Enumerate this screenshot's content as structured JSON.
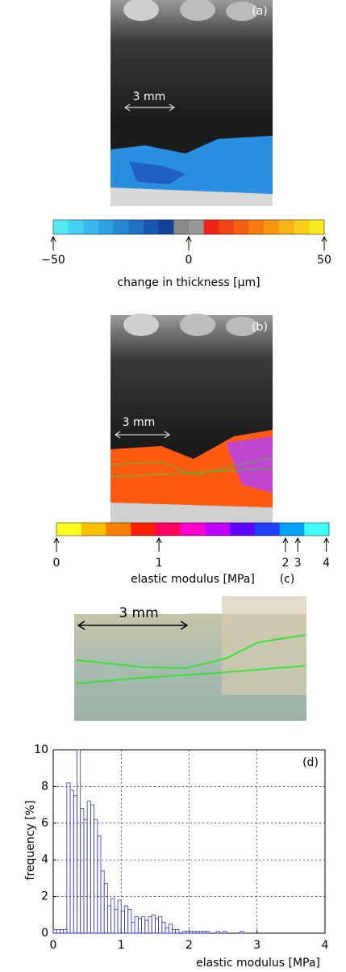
{
  "panels": [
    {
      "label": "(a)",
      "scale_bar": "3 mm"
    },
    {
      "label": "(b)",
      "scale_bar": "3 mm"
    },
    {
      "label": "(c)",
      "scale_bar": "3 mm"
    }
  ],
  "colorbars": [
    {
      "lim": [
        -50,
        50
      ],
      "ticks": [
        {
          "value": -50,
          "label": "−50"
        },
        0,
        50
      ],
      "label": "change in thickness [µm]",
      "colors": [
        "#55e8f5",
        "#44d0f2",
        "#38b8ee",
        "#30a0e4",
        "#2888d6",
        "#2070c4",
        "#1858b0",
        "#10409a",
        "#888888",
        "#999999",
        "#ee2418",
        "#f24414",
        "#f46010",
        "#f67c10",
        "#f89810",
        "#f8b414",
        "#f8d018",
        "#f8ec20"
      ]
    },
    {
      "lim": [
        0,
        4
      ],
      "ticks": [
        0,
        1,
        2,
        3,
        4
      ],
      "label": "elastic modulus [MPa]",
      "colors": [
        "#ffff20",
        "#ffc000",
        "#ff8000",
        "#ff2000",
        "#ff0060",
        "#ff00d0",
        "#c000ff",
        "#6000ff",
        "#2040ff",
        "#00a0ff",
        "#40ffff"
      ]
    }
  ],
  "chart_data": {
    "type": "histogram",
    "label": "(d)",
    "bins": [
      0,
      0.05,
      0.1,
      0.15,
      0.2,
      0.25,
      0.3,
      0.35,
      0.4,
      0.45,
      0.5,
      0.55,
      0.6,
      0.65,
      0.7,
      0.75,
      0.8,
      0.85,
      0.9,
      0.95,
      1.0,
      1.05,
      1.1,
      1.15,
      1.2,
      1.25,
      1.3,
      1.35,
      1.4,
      1.45,
      1.5,
      1.55,
      1.6,
      1.65,
      1.7,
      1.75,
      1.8,
      1.85,
      1.9,
      1.95,
      2.0,
      2.05,
      2.1,
      2.15,
      2.2,
      2.25,
      2.3,
      2.35,
      2.4,
      2.45,
      2.5,
      2.55,
      2.6,
      2.65,
      2.7,
      2.75,
      2.8
    ],
    "values": [
      0.2,
      0.2,
      0.2,
      0.2,
      8.2,
      7.8,
      7.5,
      10,
      6.8,
      6.2,
      7.2,
      7.0,
      6.2,
      5.3,
      3.4,
      2.7,
      1.5,
      1.9,
      1.3,
      1.8,
      1.2,
      1.5,
      1.3,
      0.6,
      0.9,
      0.8,
      0.9,
      0.7,
      0.9,
      1.0,
      0.8,
      0.9,
      0.6,
      0.3,
      0.5,
      0.2,
      0.2,
      0,
      0.1,
      0.1,
      0.1,
      0.1,
      0.1,
      0.1,
      0.1,
      0.1,
      0,
      0,
      0.1,
      0,
      0.1,
      0,
      0,
      0,
      0,
      0.1
    ],
    "color": "#3333cc",
    "xlim": [
      0,
      4
    ],
    "xticks": [
      0,
      1,
      2,
      3,
      4
    ],
    "ylim": [
      0,
      10
    ],
    "yticks": [
      0,
      2,
      4,
      6,
      8,
      10
    ],
    "xlabel": "elastic modulus [MPa]",
    "ylabel": "frequency [%]",
    "grid": true
  }
}
